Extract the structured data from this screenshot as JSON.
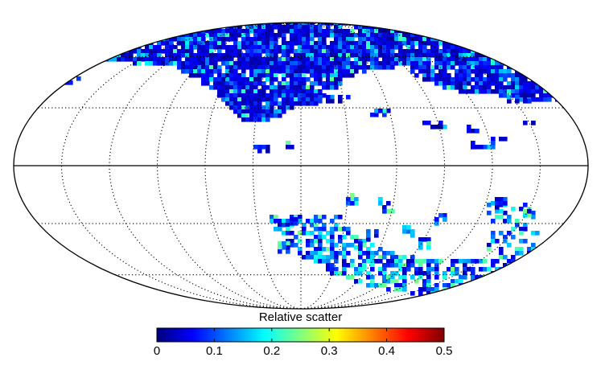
{
  "chart_data": {
    "type": "heatmap",
    "projection": "mollweide",
    "graticule": {
      "longitude_lines_deg": [
        -150,
        -120,
        -90,
        -60,
        -30,
        0,
        30,
        60,
        90,
        120,
        150
      ],
      "latitude_lines_deg": [
        -60,
        -30,
        0,
        30,
        60
      ],
      "equator_style": "solid",
      "grid_style": "dotted"
    },
    "colorbar": {
      "label": "Relative scatter",
      "colormap": "jet",
      "range": [
        0,
        0.5
      ],
      "ticks": [
        "0",
        "0.1",
        "0.2",
        "0.3",
        "0.4",
        "0.5"
      ],
      "tick_values": [
        0,
        0.1,
        0.2,
        0.3,
        0.4,
        0.5
      ]
    },
    "coverage": {
      "north": "dense coverage above about 30 deg latitude across most longitudes, values mostly 0.05-0.2 with scattered higher patches",
      "south": "band of pixels around -40 to -70 deg latitude on the eastern half of the map, values span the full 0-0.5 range"
    }
  }
}
